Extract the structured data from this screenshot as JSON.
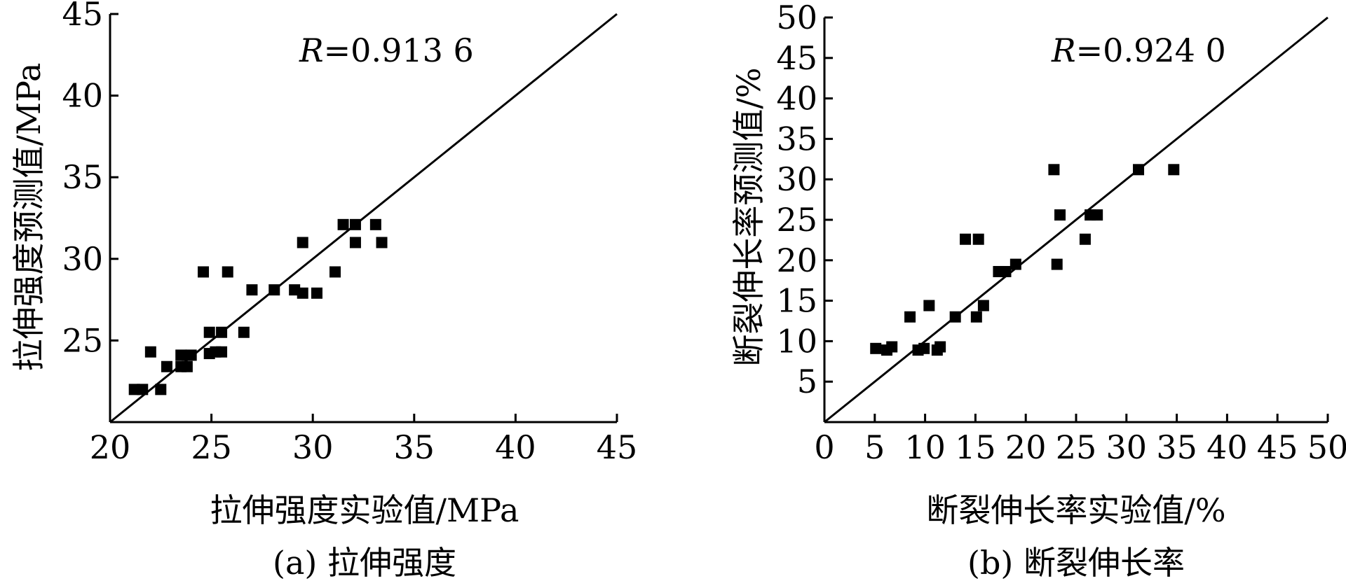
{
  "chart_data": [
    {
      "type": "scatter",
      "ylabel": "拉伸强度预测值/MPa",
      "xlabel": "拉伸强度实验值/MPa",
      "caption": "(a) 拉伸强度",
      "annotation": {
        "symbol": "R",
        "value": "=0.913 6"
      },
      "xlim": [
        20,
        45
      ],
      "ylim": [
        20,
        45
      ],
      "x_ticks": [
        "20",
        "25",
        "30",
        "35",
        "40",
        "45"
      ],
      "y_ticks": [
        "25",
        "30",
        "35",
        "40",
        "45"
      ],
      "reference_line": "y = x",
      "points": [
        {
          "x": 21.2,
          "y": 22.0
        },
        {
          "x": 21.6,
          "y": 22.0
        },
        {
          "x": 22.0,
          "y": 24.3
        },
        {
          "x": 22.5,
          "y": 22.0
        },
        {
          "x": 22.8,
          "y": 23.4
        },
        {
          "x": 23.5,
          "y": 23.4
        },
        {
          "x": 23.5,
          "y": 24.1
        },
        {
          "x": 23.8,
          "y": 23.4
        },
        {
          "x": 24.0,
          "y": 24.1
        },
        {
          "x": 24.6,
          "y": 29.2
        },
        {
          "x": 24.9,
          "y": 24.2
        },
        {
          "x": 24.9,
          "y": 25.5
        },
        {
          "x": 25.2,
          "y": 24.3
        },
        {
          "x": 25.5,
          "y": 25.5
        },
        {
          "x": 25.5,
          "y": 24.3
        },
        {
          "x": 25.8,
          "y": 29.2
        },
        {
          "x": 26.6,
          "y": 25.5
        },
        {
          "x": 27.0,
          "y": 28.1
        },
        {
          "x": 28.1,
          "y": 28.1
        },
        {
          "x": 29.1,
          "y": 28.1
        },
        {
          "x": 29.5,
          "y": 27.9
        },
        {
          "x": 29.5,
          "y": 31.0
        },
        {
          "x": 30.2,
          "y": 27.9
        },
        {
          "x": 31.1,
          "y": 29.2
        },
        {
          "x": 31.5,
          "y": 32.1
        },
        {
          "x": 32.1,
          "y": 32.1
        },
        {
          "x": 32.1,
          "y": 31.0
        },
        {
          "x": 33.1,
          "y": 32.1
        },
        {
          "x": 33.4,
          "y": 31.0
        }
      ]
    },
    {
      "type": "scatter",
      "ylabel": "断裂伸长率预测值/%",
      "xlabel": "断裂伸长率实验值/%",
      "caption": "(b) 断裂伸长率",
      "annotation": {
        "symbol": "R",
        "value": "=0.924 0"
      },
      "xlim": [
        0,
        50
      ],
      "ylim": [
        0,
        50
      ],
      "x_ticks": [
        "0",
        "5",
        "10",
        "15",
        "20",
        "25",
        "30",
        "35",
        "40",
        "45",
        "50"
      ],
      "y_ticks": [
        "5",
        "10",
        "15",
        "20",
        "25",
        "30",
        "35",
        "40",
        "45",
        "50"
      ],
      "reference_line": "y = x",
      "points": [
        {
          "x": 5.1,
          "y": 9.1
        },
        {
          "x": 6.2,
          "y": 8.9
        },
        {
          "x": 6.7,
          "y": 9.3
        },
        {
          "x": 8.5,
          "y": 13.0
        },
        {
          "x": 9.3,
          "y": 8.9
        },
        {
          "x": 9.9,
          "y": 9.1
        },
        {
          "x": 10.4,
          "y": 14.4
        },
        {
          "x": 11.2,
          "y": 8.9
        },
        {
          "x": 11.5,
          "y": 9.3
        },
        {
          "x": 13.0,
          "y": 13.0
        },
        {
          "x": 14.0,
          "y": 22.6
        },
        {
          "x": 15.1,
          "y": 13.0
        },
        {
          "x": 15.3,
          "y": 22.6
        },
        {
          "x": 15.8,
          "y": 14.4
        },
        {
          "x": 17.3,
          "y": 18.6
        },
        {
          "x": 18.0,
          "y": 18.6
        },
        {
          "x": 19.0,
          "y": 19.5
        },
        {
          "x": 22.8,
          "y": 31.2
        },
        {
          "x": 23.1,
          "y": 19.5
        },
        {
          "x": 23.4,
          "y": 25.6
        },
        {
          "x": 25.9,
          "y": 22.6
        },
        {
          "x": 26.4,
          "y": 25.6
        },
        {
          "x": 27.1,
          "y": 25.6
        },
        {
          "x": 31.2,
          "y": 31.2
        },
        {
          "x": 34.7,
          "y": 31.2
        }
      ]
    }
  ]
}
